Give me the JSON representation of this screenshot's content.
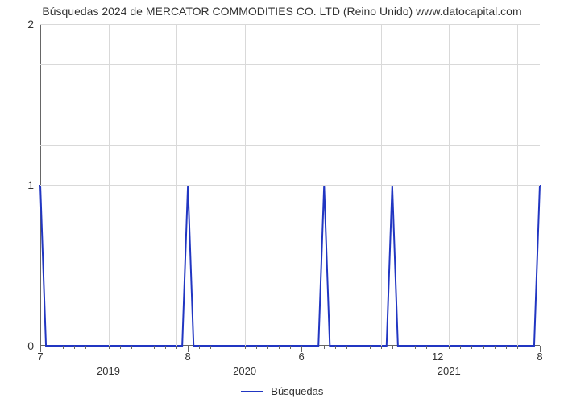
{
  "chart": {
    "type": "line",
    "title": "Búsquedas 2024 de MERCATOR COMMODITIES CO. LTD (Reino Unido) www.datocapital.com",
    "title_fontsize": 14,
    "title_color": "#333333",
    "background_color": "#ffffff",
    "grid_color": "#d9d9d9",
    "axis_color": "#666666",
    "line_color": "#2136c2",
    "line_width": 2,
    "ylim": [
      0,
      2
    ],
    "yticks": [
      0,
      1,
      2
    ],
    "ytick_fontsize": 14,
    "x_domain_months": 44,
    "peak_base_halfwidth_months": 0.5,
    "vgrid_months": [
      0,
      6,
      12,
      18,
      24,
      30,
      36,
      42
    ],
    "minor_tick_step_months": 1,
    "major_ticks": [
      {
        "month": 0,
        "label": "7"
      },
      {
        "month": 13,
        "label": "8"
      },
      {
        "month": 23,
        "label": "6"
      },
      {
        "month": 35,
        "label": "12"
      },
      {
        "month": 44,
        "label": "8"
      }
    ],
    "year_labels": [
      {
        "month": 6,
        "label": "2019"
      },
      {
        "month": 18,
        "label": "2020"
      },
      {
        "month": 36,
        "label": "2021"
      }
    ],
    "peaks_months": [
      0,
      13,
      25,
      31,
      44
    ],
    "legend_label": "Búsquedas",
    "legend_fontsize": 13
  }
}
